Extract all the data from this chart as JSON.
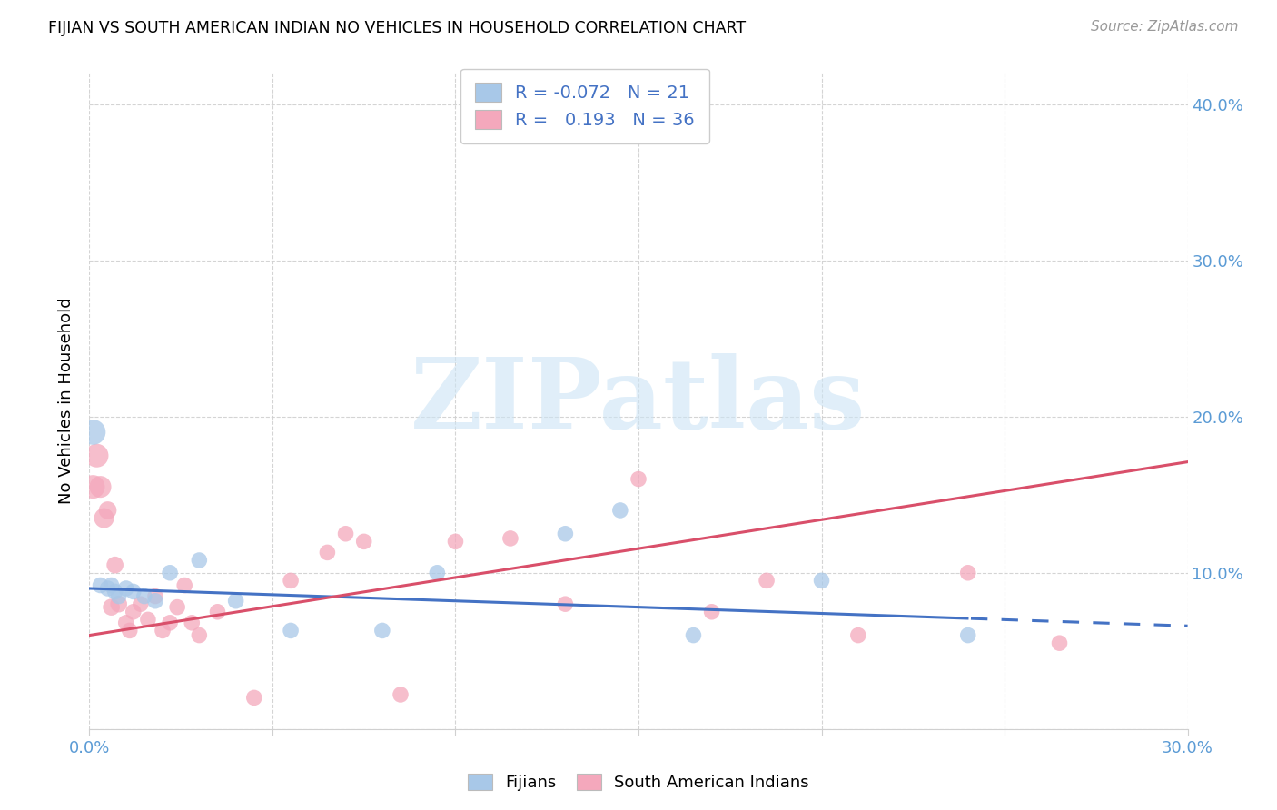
{
  "title": "FIJIAN VS SOUTH AMERICAN INDIAN NO VEHICLES IN HOUSEHOLD CORRELATION CHART",
  "source": "Source: ZipAtlas.com",
  "ylabel": "No Vehicles in Household",
  "xlim": [
    0.0,
    0.3
  ],
  "ylim": [
    0.0,
    0.42
  ],
  "fijian_R": -0.072,
  "fijian_N": 21,
  "sai_R": 0.193,
  "sai_N": 36,
  "fijian_color": "#a8c8e8",
  "sai_color": "#f4a8bc",
  "fijian_line_color": "#4472c4",
  "sai_line_color": "#d94f6a",
  "watermark_text": "ZIPatlas",
  "tick_label_color": "#5b9bd5",
  "grid_color": "#d0d0d0",
  "fijian_x": [
    0.001,
    0.003,
    0.005,
    0.006,
    0.007,
    0.008,
    0.01,
    0.012,
    0.015,
    0.018,
    0.022,
    0.03,
    0.04,
    0.055,
    0.08,
    0.095,
    0.13,
    0.145,
    0.165,
    0.2,
    0.24
  ],
  "fijian_y": [
    0.19,
    0.092,
    0.09,
    0.092,
    0.088,
    0.085,
    0.09,
    0.088,
    0.085,
    0.082,
    0.1,
    0.108,
    0.082,
    0.063,
    0.063,
    0.1,
    0.125,
    0.14,
    0.06,
    0.095,
    0.06
  ],
  "sai_x": [
    0.001,
    0.002,
    0.003,
    0.004,
    0.005,
    0.006,
    0.007,
    0.008,
    0.01,
    0.011,
    0.012,
    0.014,
    0.016,
    0.018,
    0.02,
    0.022,
    0.024,
    0.026,
    0.028,
    0.03,
    0.035,
    0.045,
    0.055,
    0.065,
    0.07,
    0.075,
    0.085,
    0.1,
    0.115,
    0.13,
    0.15,
    0.17,
    0.185,
    0.21,
    0.24,
    0.265
  ],
  "sai_y": [
    0.155,
    0.175,
    0.155,
    0.135,
    0.14,
    0.078,
    0.105,
    0.08,
    0.068,
    0.063,
    0.075,
    0.08,
    0.07,
    0.085,
    0.063,
    0.068,
    0.078,
    0.092,
    0.068,
    0.06,
    0.075,
    0.02,
    0.095,
    0.113,
    0.125,
    0.12,
    0.022,
    0.12,
    0.122,
    0.08,
    0.16,
    0.075,
    0.095,
    0.06,
    0.1,
    0.055
  ],
  "sai_marker_sizes": [
    350,
    350,
    300,
    250,
    200,
    180,
    180,
    180,
    160,
    160,
    160,
    160,
    160,
    160,
    160,
    160,
    160,
    160,
    160,
    160,
    160,
    160,
    160,
    160,
    160,
    160,
    160,
    160,
    160,
    160,
    160,
    160,
    160,
    160,
    160,
    160
  ],
  "fijian_marker_sizes": [
    400,
    160,
    160,
    160,
    160,
    160,
    160,
    160,
    160,
    160,
    160,
    160,
    160,
    160,
    160,
    160,
    160,
    160,
    160,
    160,
    160
  ],
  "x_tick_positions": [
    0.0,
    0.05,
    0.1,
    0.15,
    0.2,
    0.25,
    0.3
  ],
  "x_tick_labels": [
    "0.0%",
    "",
    "",
    "",
    "",
    "",
    "30.0%"
  ],
  "y_tick_positions": [
    0.0,
    0.1,
    0.2,
    0.3,
    0.4
  ],
  "y_right_labels": [
    "",
    "10.0%",
    "20.0%",
    "30.0%",
    "40.0%"
  ],
  "fijian_line_intercept": 0.09,
  "fijian_line_slope": -0.08,
  "sai_line_intercept": 0.06,
  "sai_line_slope": 0.37
}
